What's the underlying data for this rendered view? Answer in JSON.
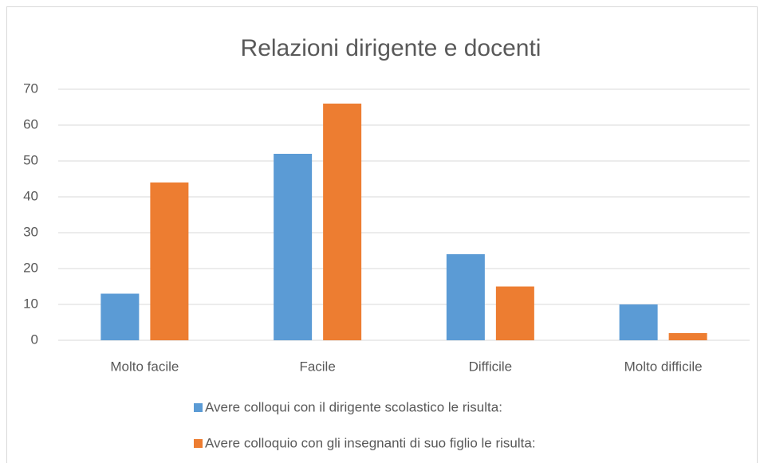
{
  "chart_data": {
    "type": "bar",
    "title": "Relazioni dirigente e docenti",
    "categories": [
      "Molto facile",
      "Facile",
      "Difficile",
      "Molto difficile"
    ],
    "series": [
      {
        "name": "Avere colloqui con il dirigente scolastico le risulta:",
        "color": "#5b9bd5",
        "values": [
          13,
          52,
          24,
          10
        ]
      },
      {
        "name": "Avere colloquio con gli insegnanti di suo figlio le risulta:",
        "color": "#ed7d31",
        "values": [
          44,
          66,
          15,
          2
        ]
      }
    ],
    "ylim": [
      0,
      70
    ],
    "yticks": [
      0,
      10,
      20,
      30,
      40,
      50,
      60,
      70
    ],
    "grid": true,
    "legend": "bottom"
  }
}
